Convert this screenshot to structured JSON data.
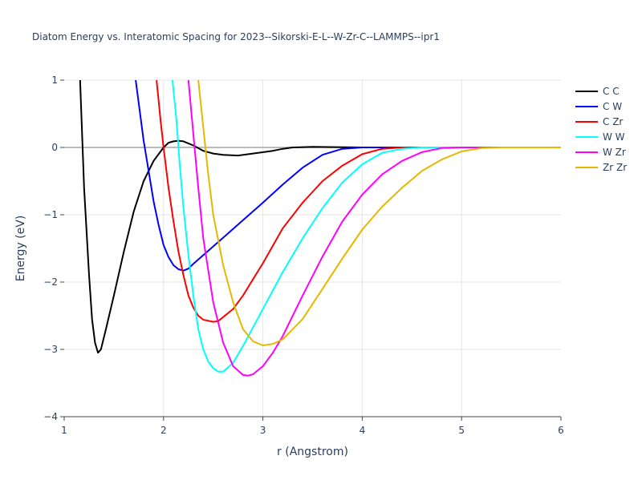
{
  "chart_data": {
    "type": "line",
    "title": "Diatom Energy vs. Interatomic Spacing for 2023--Sikorski-E-L--W-Zr-C--LAMMPS--ipr1",
    "xlabel": "r (Angstrom)",
    "ylabel": "Energy (eV)",
    "xlim": [
      1,
      6
    ],
    "ylim": [
      -4,
      1
    ],
    "x_ticks": [
      "1",
      "2",
      "3",
      "4",
      "5",
      "6"
    ],
    "y_ticks": [
      "1",
      "0",
      "−1",
      "−2",
      "−3",
      "−4"
    ],
    "grid": true,
    "legend_position": "top-right",
    "series": [
      {
        "name": "C C",
        "color": "#000000",
        "points": [
          [
            1.16,
            1.0
          ],
          [
            1.2,
            -0.6
          ],
          [
            1.25,
            -1.9
          ],
          [
            1.28,
            -2.55
          ],
          [
            1.31,
            -2.9
          ],
          [
            1.34,
            -3.05
          ],
          [
            1.37,
            -3.0
          ],
          [
            1.42,
            -2.7
          ],
          [
            1.5,
            -2.2
          ],
          [
            1.6,
            -1.55
          ],
          [
            1.7,
            -0.95
          ],
          [
            1.8,
            -0.5
          ],
          [
            1.9,
            -0.2
          ],
          [
            2.0,
            0.0
          ],
          [
            2.05,
            0.07
          ],
          [
            2.1,
            0.09
          ],
          [
            2.15,
            0.1
          ],
          [
            2.2,
            0.09
          ],
          [
            2.3,
            0.03
          ],
          [
            2.4,
            -0.05
          ],
          [
            2.5,
            -0.09
          ],
          [
            2.6,
            -0.11
          ],
          [
            2.75,
            -0.12
          ],
          [
            2.9,
            -0.09
          ],
          [
            3.1,
            -0.05
          ],
          [
            3.2,
            -0.02
          ],
          [
            3.3,
            0.0
          ],
          [
            3.5,
            0.01
          ],
          [
            4.0,
            0.0
          ],
          [
            6.0,
            0.0
          ]
        ]
      },
      {
        "name": "C W",
        "color": "#0000ff",
        "points": [
          [
            1.72,
            1.0
          ],
          [
            1.8,
            0.1
          ],
          [
            1.85,
            -0.35
          ],
          [
            1.9,
            -0.8
          ],
          [
            1.95,
            -1.15
          ],
          [
            2.0,
            -1.45
          ],
          [
            2.05,
            -1.63
          ],
          [
            2.1,
            -1.75
          ],
          [
            2.15,
            -1.81
          ],
          [
            2.2,
            -1.83
          ],
          [
            2.25,
            -1.8
          ],
          [
            2.3,
            -1.73
          ],
          [
            2.4,
            -1.6
          ],
          [
            2.5,
            -1.47
          ],
          [
            2.6,
            -1.34
          ],
          [
            2.8,
            -1.08
          ],
          [
            3.0,
            -0.82
          ],
          [
            3.2,
            -0.55
          ],
          [
            3.4,
            -0.3
          ],
          [
            3.6,
            -0.11
          ],
          [
            3.8,
            -0.02
          ],
          [
            4.0,
            0.0
          ],
          [
            6.0,
            0.0
          ]
        ]
      },
      {
        "name": "C Zr",
        "color": "#ff0000",
        "points": [
          [
            1.93,
            1.0
          ],
          [
            1.97,
            0.4
          ],
          [
            2.0,
            0.0
          ],
          [
            2.05,
            -0.6
          ],
          [
            2.1,
            -1.1
          ],
          [
            2.15,
            -1.55
          ],
          [
            2.2,
            -1.9
          ],
          [
            2.25,
            -2.2
          ],
          [
            2.3,
            -2.38
          ],
          [
            2.35,
            -2.5
          ],
          [
            2.4,
            -2.56
          ],
          [
            2.5,
            -2.59
          ],
          [
            2.55,
            -2.58
          ],
          [
            2.6,
            -2.52
          ],
          [
            2.7,
            -2.4
          ],
          [
            2.8,
            -2.2
          ],
          [
            3.0,
            -1.72
          ],
          [
            3.2,
            -1.2
          ],
          [
            3.4,
            -0.82
          ],
          [
            3.6,
            -0.5
          ],
          [
            3.8,
            -0.27
          ],
          [
            4.0,
            -0.1
          ],
          [
            4.2,
            -0.02
          ],
          [
            4.4,
            0.0
          ],
          [
            6.0,
            0.0
          ]
        ]
      },
      {
        "name": "W W",
        "color": "#00ffff",
        "points": [
          [
            2.09,
            1.0
          ],
          [
            2.13,
            0.4
          ],
          [
            2.16,
            -0.2
          ],
          [
            2.2,
            -0.9
          ],
          [
            2.25,
            -1.6
          ],
          [
            2.3,
            -2.2
          ],
          [
            2.35,
            -2.7
          ],
          [
            2.4,
            -3.0
          ],
          [
            2.45,
            -3.18
          ],
          [
            2.5,
            -3.28
          ],
          [
            2.55,
            -3.33
          ],
          [
            2.6,
            -3.33
          ],
          [
            2.7,
            -3.2
          ],
          [
            2.8,
            -2.95
          ],
          [
            3.0,
            -2.4
          ],
          [
            3.2,
            -1.85
          ],
          [
            3.4,
            -1.35
          ],
          [
            3.6,
            -0.9
          ],
          [
            3.8,
            -0.52
          ],
          [
            4.0,
            -0.25
          ],
          [
            4.2,
            -0.08
          ],
          [
            4.4,
            -0.02
          ],
          [
            4.6,
            0.0
          ],
          [
            6.0,
            0.0
          ]
        ]
      },
      {
        "name": "W Zr",
        "color": "#ff00ff",
        "points": [
          [
            2.25,
            1.0
          ],
          [
            2.3,
            0.2
          ],
          [
            2.35,
            -0.6
          ],
          [
            2.4,
            -1.35
          ],
          [
            2.5,
            -2.3
          ],
          [
            2.6,
            -2.9
          ],
          [
            2.7,
            -3.25
          ],
          [
            2.8,
            -3.38
          ],
          [
            2.85,
            -3.39
          ],
          [
            2.9,
            -3.37
          ],
          [
            3.0,
            -3.25
          ],
          [
            3.1,
            -3.05
          ],
          [
            3.2,
            -2.8
          ],
          [
            3.4,
            -2.2
          ],
          [
            3.6,
            -1.62
          ],
          [
            3.8,
            -1.1
          ],
          [
            4.0,
            -0.7
          ],
          [
            4.2,
            -0.4
          ],
          [
            4.4,
            -0.2
          ],
          [
            4.6,
            -0.07
          ],
          [
            4.8,
            -0.01
          ],
          [
            5.0,
            0.0
          ],
          [
            6.0,
            0.0
          ]
        ]
      },
      {
        "name": "Zr Zr",
        "color": "#e6b800",
        "points": [
          [
            2.35,
            1.0
          ],
          [
            2.4,
            0.3
          ],
          [
            2.45,
            -0.4
          ],
          [
            2.5,
            -1.0
          ],
          [
            2.6,
            -1.75
          ],
          [
            2.7,
            -2.3
          ],
          [
            2.8,
            -2.7
          ],
          [
            2.9,
            -2.88
          ],
          [
            3.0,
            -2.94
          ],
          [
            3.1,
            -2.92
          ],
          [
            3.2,
            -2.85
          ],
          [
            3.4,
            -2.55
          ],
          [
            3.6,
            -2.1
          ],
          [
            3.8,
            -1.65
          ],
          [
            4.0,
            -1.22
          ],
          [
            4.2,
            -0.88
          ],
          [
            4.4,
            -0.6
          ],
          [
            4.6,
            -0.35
          ],
          [
            4.8,
            -0.18
          ],
          [
            5.0,
            -0.06
          ],
          [
            5.2,
            -0.01
          ],
          [
            5.4,
            0.0
          ],
          [
            6.0,
            0.0
          ]
        ]
      }
    ]
  }
}
